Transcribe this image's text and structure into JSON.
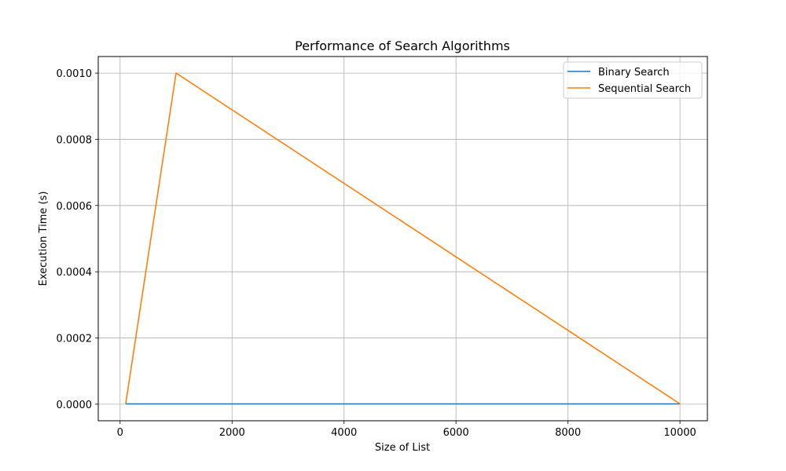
{
  "chart_data": {
    "type": "line",
    "title": "Performance of Search Algorithms",
    "xlabel": "Size of List",
    "ylabel": "Execution Time (s)",
    "xlim": [
      -390,
      10490
    ],
    "ylim": [
      -5e-05,
      0.00105
    ],
    "xticks": [
      0,
      2000,
      4000,
      6000,
      8000,
      10000
    ],
    "xtick_labels": [
      "0",
      "2000",
      "4000",
      "6000",
      "8000",
      "10000"
    ],
    "yticks": [
      0,
      0.0002,
      0.0004,
      0.0006,
      0.0008,
      0.001
    ],
    "ytick_labels": [
      "0.0000",
      "0.0002",
      "0.0004",
      "0.0006",
      "0.0008",
      "0.0010"
    ],
    "grid": true,
    "legend_position": "top-right",
    "x": [
      100,
      1000,
      10000
    ],
    "series": [
      {
        "name": "Binary Search",
        "color": "#1f77b4",
        "values": [
          1e-06,
          1e-06,
          1e-06
        ]
      },
      {
        "name": "Sequential Search",
        "color": "#ff7f0e",
        "values": [
          1e-06,
          0.001,
          1e-06
        ]
      }
    ]
  }
}
